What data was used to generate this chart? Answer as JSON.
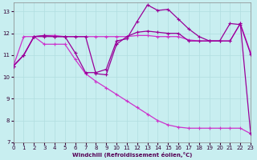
{
  "xlabel": "Windchill (Refroidissement éolien,°C)",
  "xlim": [
    0,
    23
  ],
  "ylim": [
    7,
    13.4
  ],
  "yticks": [
    7,
    8,
    9,
    10,
    11,
    12,
    13
  ],
  "xticks": [
    0,
    1,
    2,
    3,
    4,
    5,
    6,
    7,
    8,
    9,
    10,
    11,
    12,
    13,
    14,
    15,
    16,
    17,
    18,
    19,
    20,
    21,
    22,
    23
  ],
  "bg": "#c8eef0",
  "grid_color": "#b0dde0",
  "c1": "#990099",
  "c2": "#cc33cc",
  "line1_x": [
    0,
    1,
    2,
    3,
    4,
    5,
    6,
    7,
    8,
    9,
    10,
    11,
    12,
    13,
    14,
    15,
    16,
    17,
    18,
    19,
    20,
    21,
    22,
    23
  ],
  "line1_y": [
    10.5,
    11.0,
    11.85,
    11.9,
    11.85,
    11.85,
    11.1,
    10.2,
    10.2,
    10.35,
    11.65,
    11.75,
    12.55,
    13.3,
    13.05,
    13.1,
    12.65,
    12.2,
    11.85,
    11.65,
    11.65,
    12.45,
    12.4,
    11.05
  ],
  "line2_x": [
    0,
    1,
    2,
    3,
    4,
    5,
    6,
    7,
    8,
    9,
    10,
    11,
    12,
    13,
    14,
    15,
    16,
    17,
    18,
    19,
    20,
    21,
    22,
    23
  ],
  "line2_y": [
    10.5,
    11.85,
    11.85,
    11.9,
    11.9,
    11.85,
    11.85,
    11.85,
    11.85,
    11.85,
    11.85,
    11.85,
    11.9,
    11.9,
    11.85,
    11.85,
    11.85,
    11.7,
    11.65,
    11.65,
    11.65,
    11.65,
    12.45,
    11.1
  ],
  "line3_x": [
    0,
    1,
    2,
    3,
    4,
    5,
    6,
    7,
    8,
    9,
    10,
    11,
    12,
    13,
    14,
    15,
    16,
    17,
    18,
    19,
    20,
    21,
    22,
    23
  ],
  "line3_y": [
    10.5,
    11.0,
    11.85,
    11.85,
    11.85,
    11.85,
    11.85,
    11.85,
    10.15,
    10.1,
    11.5,
    11.85,
    12.05,
    12.1,
    12.05,
    12.0,
    12.0,
    11.65,
    11.65,
    11.65,
    11.65,
    11.65,
    12.45,
    7.4
  ],
  "line4_x": [
    0,
    1,
    2,
    3,
    4,
    5,
    6,
    7,
    8,
    9,
    10,
    11,
    12,
    13,
    14,
    15,
    16,
    17,
    18,
    19,
    20,
    21,
    22,
    23
  ],
  "line4_y": [
    10.5,
    11.0,
    11.85,
    11.5,
    11.5,
    11.5,
    10.8,
    10.15,
    9.8,
    9.5,
    9.2,
    8.9,
    8.6,
    8.3,
    8.0,
    7.8,
    7.7,
    7.65,
    7.65,
    7.65,
    7.65,
    7.65,
    7.65,
    7.4
  ]
}
